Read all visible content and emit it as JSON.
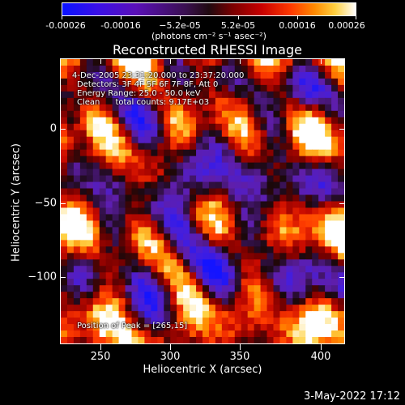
{
  "window_title": "Reconstructed RHESSI Image",
  "colorbar": {
    "ticks": [
      "-0.00026",
      "-0.00016",
      "−5.2e-05",
      "5.2e-05",
      "0.00016",
      "0.00026"
    ],
    "units_label": "(photons cm⁻² s⁻¹ asec⁻²)"
  },
  "chart_data": {
    "type": "heatmap",
    "title": "Reconstructed RHESSI Image",
    "xlabel": "Heliocentric X (arcsec)",
    "ylabel": "Heliocentric Y (arcsec)",
    "xlim": [
      224,
      415
    ],
    "ylim": [
      -143,
      25
    ],
    "x_ticks": [
      "250",
      "300",
      "350",
      "400"
    ],
    "y_ticks": [
      "0",
      "−50",
      "−100"
    ],
    "color_range": [
      -0.00026,
      0.00026
    ],
    "peak": [
      265,
      15
    ]
  },
  "info": {
    "time_range": "4-Dec-2005 23:31:20.000 to 23:37:20.000",
    "detectors": "Detectors: 3F 4F 5F 6F 7F 8F, Att 0",
    "energy": "Energy Range: 25.0 - 50.0 keV",
    "clean": "Clean      total counts: 9.17E+03",
    "peak": "Position of Peak = [265,15]"
  },
  "footer": {
    "date": "3-May-2022 17:12"
  }
}
